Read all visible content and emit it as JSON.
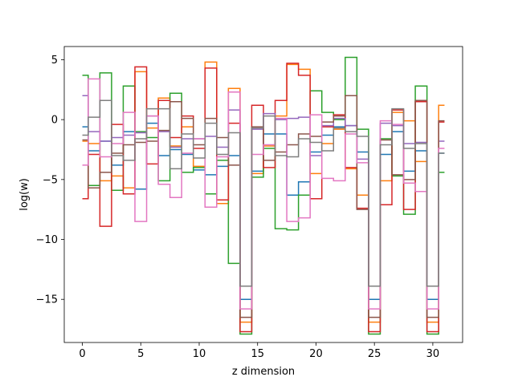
{
  "chart_data": {
    "type": "line",
    "drawstyle": "steps-mid",
    "title": "",
    "xlabel": "z dimension",
    "ylabel": "log(w)",
    "xlim": [
      -1.55,
      32.55
    ],
    "ylim": [
      -18.6,
      6.1
    ],
    "xticks": [
      0,
      5,
      10,
      15,
      20,
      25,
      30
    ],
    "yticks": [
      5,
      0,
      -5,
      -10,
      -15
    ],
    "ytick_labels": [
      "5",
      "0",
      "−5",
      "−10",
      "−15"
    ],
    "grid": false,
    "legend": "none",
    "x": [
      0,
      1,
      2,
      3,
      4,
      5,
      6,
      7,
      8,
      9,
      10,
      11,
      12,
      13,
      14,
      15,
      16,
      17,
      18,
      19,
      20,
      21,
      22,
      23,
      24,
      25,
      26,
      27,
      28,
      29,
      30,
      31
    ],
    "series": [
      {
        "color": "#1f77b4",
        "values": [
          -0.6,
          -2.6,
          -1.8,
          -3.8,
          -1.0,
          -5.8,
          -0.3,
          -3.0,
          -2.5,
          -2.9,
          -4.2,
          -4.6,
          -3.9,
          -3.0,
          -15.0,
          -4.3,
          -1.2,
          -1.2,
          -6.3,
          -5.2,
          -2.7,
          -1.3,
          -0.6,
          -0.5,
          -2.7,
          -15.0,
          -2.9,
          -1.0,
          -4.3,
          -2.6,
          -15.0,
          -2.8
        ]
      },
      {
        "color": "#ff7f0e",
        "values": [
          -1.8,
          -2.0,
          -5.1,
          -4.7,
          -5.7,
          4.0,
          -0.7,
          1.8,
          -2.2,
          -0.6,
          -3.9,
          4.8,
          -7.0,
          2.6,
          -16.9,
          -4.5,
          -2.2,
          0.3,
          4.6,
          4.2,
          -4.5,
          -2.0,
          -0.8,
          -4.1,
          -6.3,
          -16.9,
          -5.1,
          0.6,
          -0.1,
          -3.5,
          -16.9,
          1.2
        ]
      },
      {
        "color": "#2ca02c",
        "values": [
          3.7,
          -5.5,
          3.9,
          -5.9,
          2.8,
          -1.0,
          -1.5,
          -5.1,
          2.2,
          -4.4,
          -4.0,
          -6.2,
          -3.4,
          -12.0,
          -17.9,
          -4.8,
          -2.4,
          -9.1,
          -9.2,
          -6.3,
          2.4,
          0.6,
          0.0,
          5.2,
          -0.8,
          -17.9,
          -1.6,
          -4.7,
          -7.9,
          2.8,
          -17.9,
          -4.4
        ]
      },
      {
        "color": "#d62728",
        "values": [
          -6.6,
          -2.9,
          -8.9,
          -0.4,
          -6.2,
          4.4,
          -3.7,
          1.6,
          -1.5,
          0.3,
          -2.4,
          4.3,
          -6.7,
          -0.3,
          -17.7,
          1.2,
          -4.0,
          1.6,
          4.7,
          3.7,
          -6.6,
          -0.6,
          0.4,
          -4.0,
          -7.4,
          -17.7,
          -7.1,
          0.8,
          -7.5,
          1.5,
          -17.7,
          -0.2
        ]
      },
      {
        "color": "#9467bd",
        "values": [
          2.0,
          -1.0,
          -1.8,
          -1.5,
          -1.3,
          -1.1,
          0.3,
          -1.0,
          -2.3,
          -1.6,
          -1.6,
          -1.4,
          -2.3,
          0.8,
          -13.9,
          -0.8,
          0.5,
          0.0,
          0.1,
          0.2,
          -3.0,
          -0.5,
          0.1,
          -0.5,
          -3.3,
          -13.9,
          -0.3,
          -0.5,
          -2.0,
          -1.9,
          -13.9,
          -1.8
        ]
      },
      {
        "color": "#8c564b",
        "values": [
          -1.7,
          -5.7,
          -4.4,
          -2.8,
          -2.1,
          -1.9,
          -1.8,
          -0.9,
          1.5,
          0.1,
          -2.1,
          0.1,
          -1.5,
          -3.8,
          -16.5,
          -0.6,
          -3.4,
          -2.7,
          -2.1,
          -1.2,
          -1.4,
          -0.2,
          0.3,
          2.0,
          -7.5,
          -16.5,
          -1.7,
          -4.6,
          -5.0,
          1.6,
          -16.5,
          -0.1
        ]
      },
      {
        "color": "#e377c2",
        "values": [
          -3.8,
          3.4,
          -3.1,
          -2.0,
          0.6,
          -8.5,
          0.3,
          -5.4,
          -6.5,
          -2.8,
          -1.6,
          -7.3,
          -3.1,
          2.3,
          -15.8,
          -2.9,
          -2.1,
          0.1,
          -8.5,
          -8.2,
          0.4,
          -4.9,
          -5.1,
          -1.2,
          -3.6,
          -15.8,
          -0.1,
          -0.4,
          -5.3,
          -6.0,
          -15.8,
          -2.4
        ]
      },
      {
        "color": "#7f7f7f",
        "values": [
          -1.3,
          0.2,
          1.6,
          -3.0,
          -3.4,
          -1.6,
          0.9,
          0.9,
          -4.1,
          -1.2,
          -3.2,
          -0.3,
          -2.9,
          -1.1,
          -13.9,
          -0.7,
          0.3,
          -3.0,
          -3.1,
          -1.6,
          -1.9,
          -2.6,
          -0.7,
          -1.0,
          -1.4,
          -13.9,
          -2.1,
          0.9,
          -2.4,
          -2.0,
          -13.9,
          -2.8
        ]
      }
    ]
  }
}
